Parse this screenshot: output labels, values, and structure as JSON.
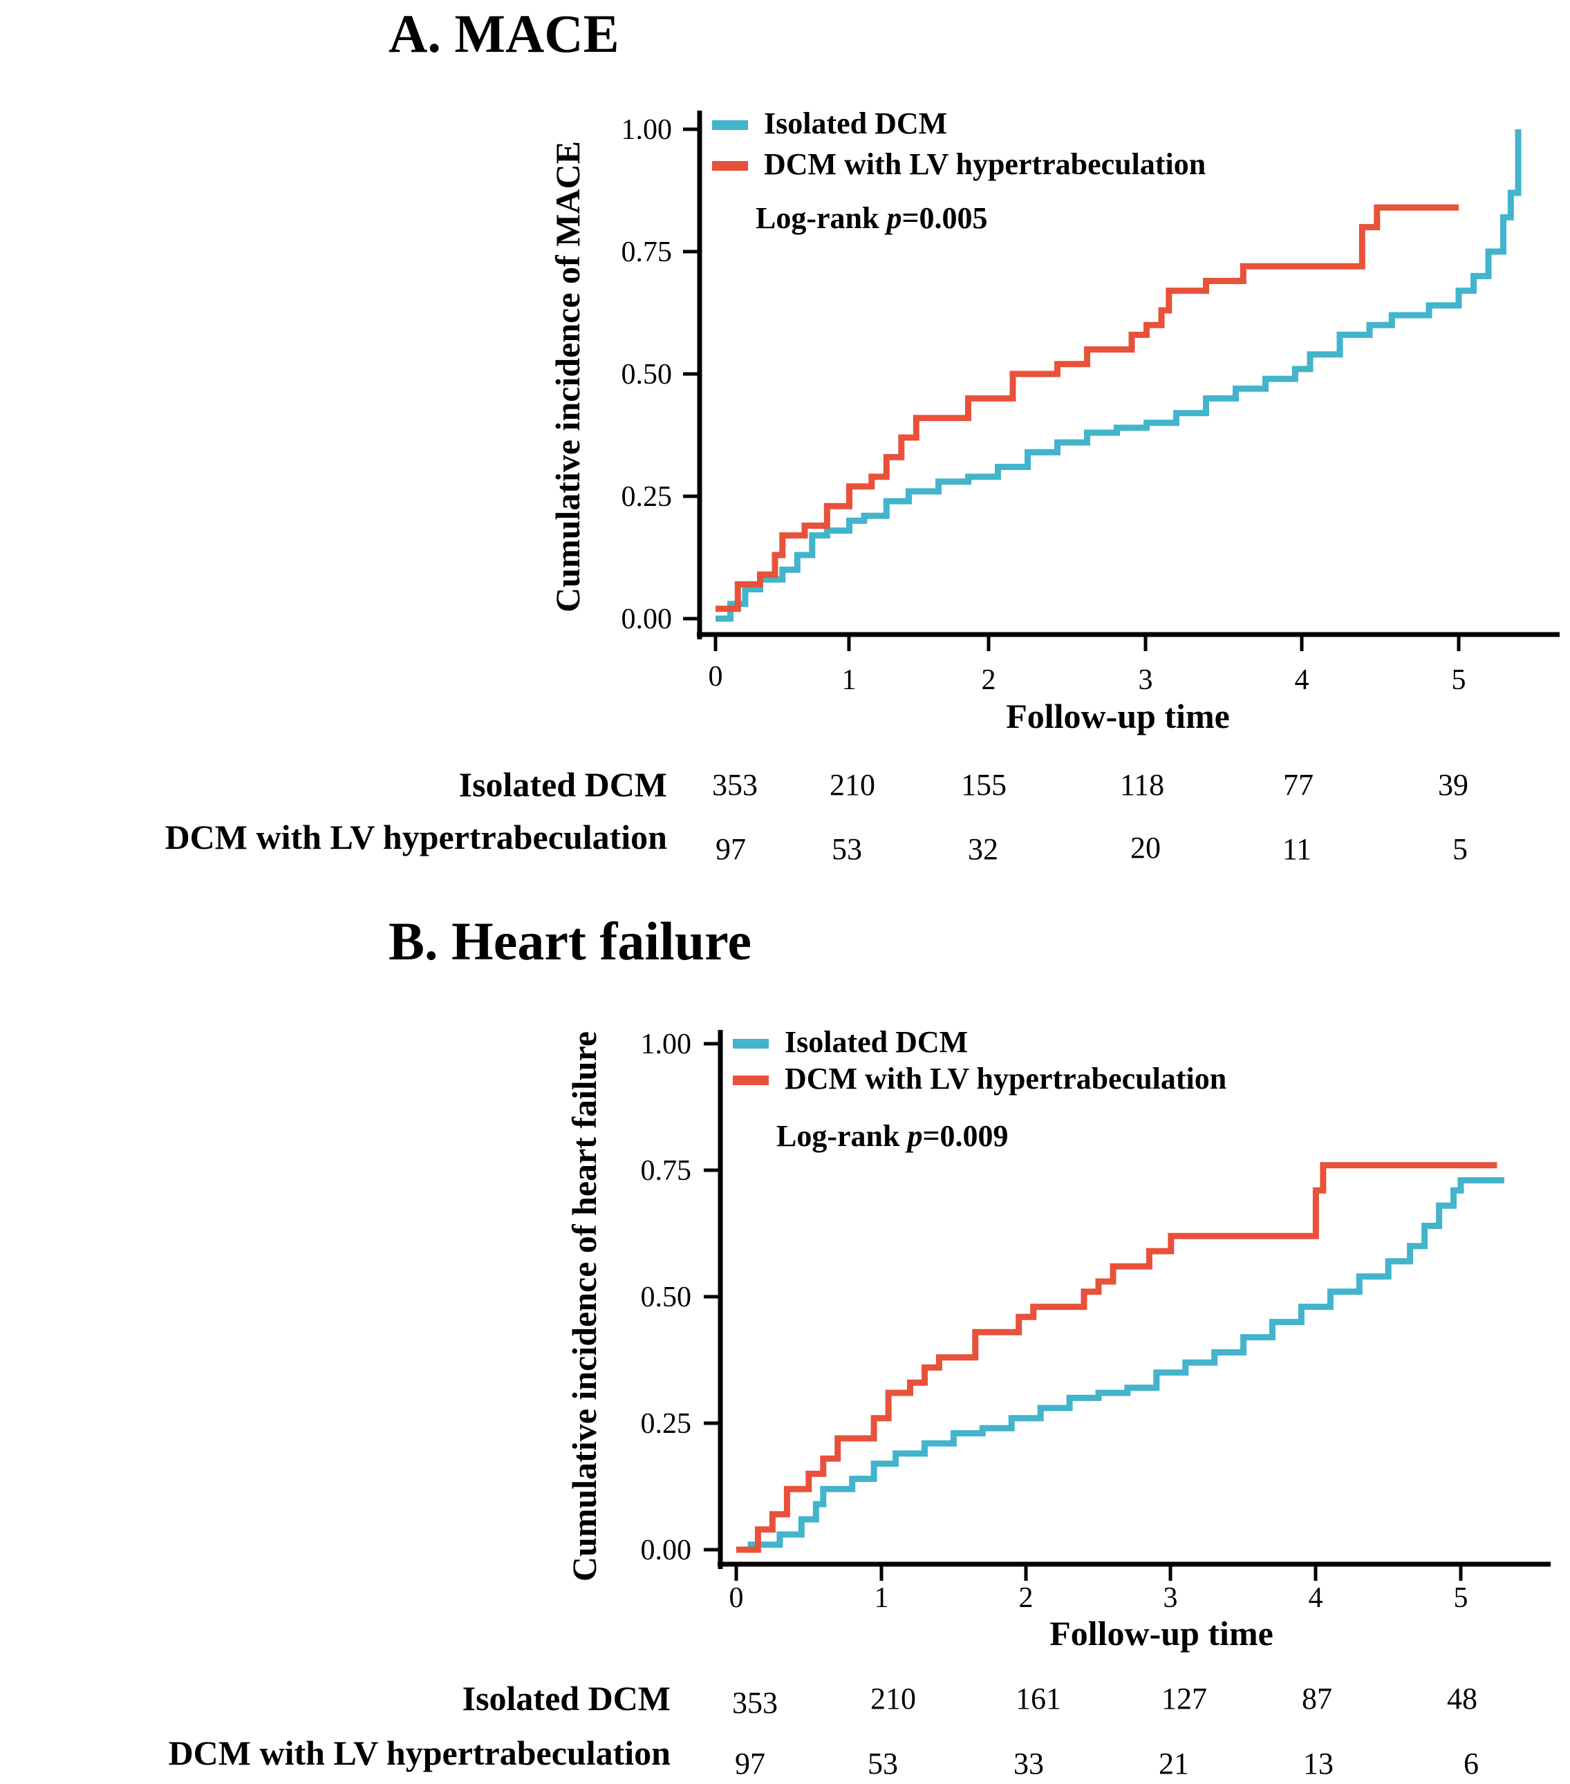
{
  "colors": {
    "isolated": "#42B4CC",
    "hypertrab": "#E8513A"
  },
  "chart_data": [
    {
      "type": "line",
      "title": "A. MACE",
      "xlabel": "Follow-up time",
      "ylabel": "Cumulative incidence of MACE",
      "xlim": [
        0,
        5.4
      ],
      "ylim": [
        0,
        1
      ],
      "x_ticks": [
        "0",
        "1",
        "2",
        "3",
        "4",
        "5"
      ],
      "y_ticks": [
        "0.00",
        "0.25",
        "0.50",
        "0.75",
        "1.00"
      ],
      "legend": [
        "Isolated DCM",
        "DCM with LV hypertrabeculation"
      ],
      "annotation": {
        "prefix": "Log-rank ",
        "p": "p",
        "value": "=0.005"
      },
      "series": [
        {
          "name": "Isolated DCM",
          "points": [
            [
              0,
              0
            ],
            [
              0.1,
              0.03
            ],
            [
              0.2,
              0.06
            ],
            [
              0.3,
              0.08
            ],
            [
              0.45,
              0.1
            ],
            [
              0.55,
              0.13
            ],
            [
              0.65,
              0.17
            ],
            [
              0.75,
              0.18
            ],
            [
              0.9,
              0.2
            ],
            [
              1.0,
              0.21
            ],
            [
              1.15,
              0.24
            ],
            [
              1.3,
              0.26
            ],
            [
              1.5,
              0.28
            ],
            [
              1.7,
              0.29
            ],
            [
              1.9,
              0.31
            ],
            [
              2.1,
              0.34
            ],
            [
              2.3,
              0.36
            ],
            [
              2.5,
              0.38
            ],
            [
              2.7,
              0.39
            ],
            [
              2.9,
              0.4
            ],
            [
              3.1,
              0.42
            ],
            [
              3.3,
              0.45
            ],
            [
              3.5,
              0.47
            ],
            [
              3.7,
              0.49
            ],
            [
              3.9,
              0.51
            ],
            [
              4.0,
              0.54
            ],
            [
              4.2,
              0.58
            ],
            [
              4.4,
              0.6
            ],
            [
              4.55,
              0.62
            ],
            [
              4.8,
              0.64
            ],
            [
              5.0,
              0.67
            ],
            [
              5.1,
              0.7
            ],
            [
              5.2,
              0.75
            ],
            [
              5.3,
              0.82
            ],
            [
              5.35,
              0.87
            ],
            [
              5.4,
              0.87
            ],
            [
              5.4,
              1.0
            ]
          ]
        },
        {
          "name": "DCM with LV hypertrabeculation",
          "points": [
            [
              0,
              0.02
            ],
            [
              0.12,
              0.02
            ],
            [
              0.15,
              0.07
            ],
            [
              0.3,
              0.09
            ],
            [
              0.4,
              0.13
            ],
            [
              0.45,
              0.17
            ],
            [
              0.6,
              0.19
            ],
            [
              0.75,
              0.23
            ],
            [
              0.9,
              0.27
            ],
            [
              1.05,
              0.29
            ],
            [
              1.15,
              0.33
            ],
            [
              1.25,
              0.37
            ],
            [
              1.35,
              0.41
            ],
            [
              1.7,
              0.45
            ],
            [
              2.0,
              0.5
            ],
            [
              2.3,
              0.52
            ],
            [
              2.5,
              0.55
            ],
            [
              2.8,
              0.58
            ],
            [
              2.9,
              0.6
            ],
            [
              3.0,
              0.63
            ],
            [
              3.05,
              0.67
            ],
            [
              3.3,
              0.69
            ],
            [
              3.55,
              0.72
            ],
            [
              4.3,
              0.72
            ],
            [
              4.35,
              0.8
            ],
            [
              4.45,
              0.84
            ],
            [
              5.0,
              0.84
            ]
          ]
        }
      ],
      "risk_table": {
        "rows": [
          {
            "label": "Isolated DCM",
            "values": [
              "353",
              "210",
              "155",
              "118",
              "77",
              "39"
            ]
          },
          {
            "label": "DCM with LV hypertrabeculation",
            "values": [
              "97",
              "53",
              "32",
              "20",
              "11",
              "5"
            ]
          }
        ]
      }
    },
    {
      "type": "line",
      "title": "B. Heart failure",
      "xlabel": "Follow-up time",
      "ylabel": "Cumulative incidence of heart failure",
      "xlim": [
        0,
        5.4
      ],
      "ylim": [
        0,
        1
      ],
      "x_ticks": [
        "0",
        "1",
        "2",
        "3",
        "4",
        "5"
      ],
      "y_ticks": [
        "0.00",
        "0.25",
        "0.50",
        "0.75",
        "1.00"
      ],
      "legend": [
        "Isolated DCM",
        "DCM with LV hypertrabeculation"
      ],
      "annotation": {
        "prefix": "Log-rank ",
        "p": "p",
        "value": "=0.009"
      },
      "series": [
        {
          "name": "Isolated DCM",
          "points": [
            [
              0,
              0
            ],
            [
              0.1,
              0.01
            ],
            [
              0.3,
              0.03
            ],
            [
              0.45,
              0.06
            ],
            [
              0.55,
              0.09
            ],
            [
              0.6,
              0.12
            ],
            [
              0.8,
              0.14
            ],
            [
              0.95,
              0.17
            ],
            [
              1.1,
              0.19
            ],
            [
              1.3,
              0.21
            ],
            [
              1.5,
              0.23
            ],
            [
              1.7,
              0.24
            ],
            [
              1.9,
              0.26
            ],
            [
              2.1,
              0.28
            ],
            [
              2.3,
              0.3
            ],
            [
              2.5,
              0.31
            ],
            [
              2.7,
              0.32
            ],
            [
              2.9,
              0.35
            ],
            [
              3.1,
              0.37
            ],
            [
              3.3,
              0.39
            ],
            [
              3.5,
              0.42
            ],
            [
              3.7,
              0.45
            ],
            [
              3.9,
              0.48
            ],
            [
              4.1,
              0.51
            ],
            [
              4.3,
              0.54
            ],
            [
              4.5,
              0.57
            ],
            [
              4.65,
              0.6
            ],
            [
              4.75,
              0.64
            ],
            [
              4.85,
              0.68
            ],
            [
              4.95,
              0.71
            ],
            [
              5.0,
              0.73
            ],
            [
              5.3,
              0.73
            ]
          ]
        },
        {
          "name": "DCM with LV hypertrabeculation",
          "points": [
            [
              0,
              0
            ],
            [
              0.12,
              0
            ],
            [
              0.15,
              0.04
            ],
            [
              0.25,
              0.07
            ],
            [
              0.35,
              0.12
            ],
            [
              0.5,
              0.15
            ],
            [
              0.6,
              0.18
            ],
            [
              0.7,
              0.22
            ],
            [
              0.95,
              0.26
            ],
            [
              1.05,
              0.31
            ],
            [
              1.2,
              0.33
            ],
            [
              1.3,
              0.36
            ],
            [
              1.4,
              0.38
            ],
            [
              1.65,
              0.43
            ],
            [
              1.95,
              0.46
            ],
            [
              2.05,
              0.48
            ],
            [
              2.4,
              0.51
            ],
            [
              2.5,
              0.53
            ],
            [
              2.6,
              0.56
            ],
            [
              2.85,
              0.59
            ],
            [
              3.0,
              0.62
            ],
            [
              3.95,
              0.62
            ],
            [
              4.0,
              0.71
            ],
            [
              4.05,
              0.76
            ],
            [
              5.25,
              0.76
            ]
          ]
        }
      ],
      "risk_table": {
        "rows": [
          {
            "label": "Isolated DCM",
            "values": [
              "353",
              "210",
              "161",
              "127",
              "87",
              "48"
            ]
          },
          {
            "label": "DCM with LV hypertrabeculation",
            "values": [
              "97",
              "53",
              "33",
              "21",
              "13",
              "6"
            ]
          }
        ]
      }
    }
  ]
}
